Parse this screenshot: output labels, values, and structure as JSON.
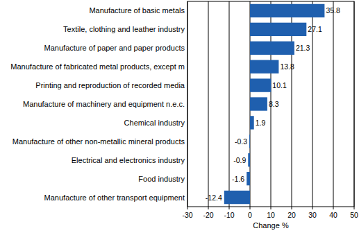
{
  "chart_data": {
    "type": "bar",
    "orientation": "horizontal",
    "categories": [
      "Manufacture of basic metals",
      "Textile, clothing and leather industry",
      "Manufacture of paper and paper products",
      "Manufacture of fabricated metal products, except m",
      "Printing and reproduction of recorded media",
      "Manufacture of machinery and equipment n.e.c.",
      "Chemical industry",
      "Manufacture of other non-metallic mineral products",
      "Electrical and electronics industry",
      "Food industry",
      "Manufacture of other transport equipment"
    ],
    "values": [
      35.8,
      27.1,
      21.3,
      13.8,
      10.1,
      8.3,
      1.9,
      -0.3,
      -0.9,
      -1.6,
      -12.4
    ],
    "color": "#1f5fae",
    "x_label": "Change %",
    "xlim": [
      -30,
      50
    ],
    "xticks": [
      -30,
      -20,
      -10,
      0,
      10,
      20,
      30,
      40,
      50
    ],
    "grid": true,
    "data_labels": true
  }
}
